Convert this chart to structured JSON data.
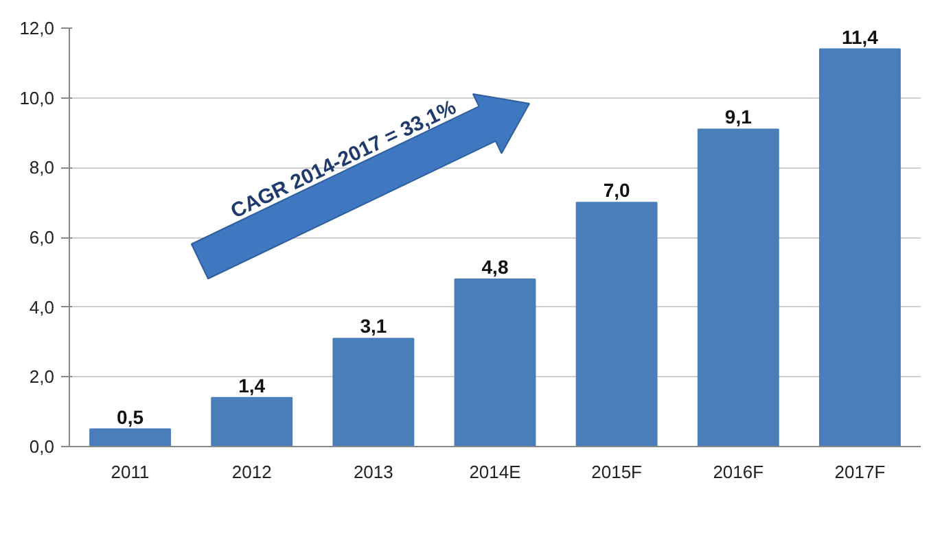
{
  "chart_data": {
    "type": "bar",
    "categories": [
      "2011",
      "2012",
      "2013",
      "2014E",
      "2015F",
      "2016F",
      "2017F"
    ],
    "values": [
      0.5,
      1.4,
      3.1,
      4.8,
      7.0,
      9.1,
      11.4
    ],
    "value_labels": [
      "0,5",
      "1,4",
      "3,1",
      "4,8",
      "7,0",
      "9,1",
      "11,4"
    ],
    "color": "#4a7ebb",
    "ylim": [
      0,
      12
    ],
    "yticks": [
      {
        "value": 0,
        "label": "0,0"
      },
      {
        "value": 2,
        "label": "2,0"
      },
      {
        "value": 4,
        "label": "4,0"
      },
      {
        "value": 6,
        "label": "6,0"
      },
      {
        "value": 8,
        "label": "8,0"
      },
      {
        "value": 10,
        "label": "10,0"
      },
      {
        "value": 12,
        "label": "12,0"
      }
    ],
    "grid": "y",
    "annotations": [
      "CAGR 2014-2017 = 33,1%"
    ]
  }
}
